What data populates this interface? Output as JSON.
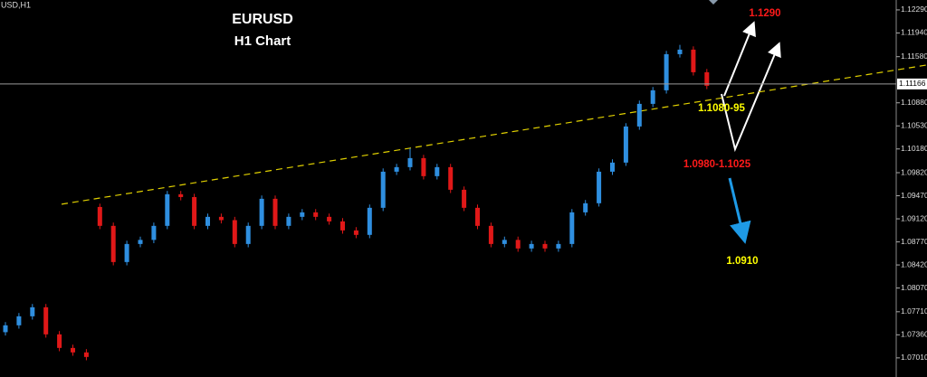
{
  "chart_data": {
    "type": "candlestick",
    "symbol_label": "USD,H1",
    "title": "EURUSD",
    "subtitle": "H1 Chart",
    "up_color": "#2f8fe0",
    "down_color": "#e01818",
    "open": [
      1.074,
      1.07504,
      1.07641,
      1.07778,
      1.07367,
      1.07161,
      1.07093,
      1.093,
      1.09013,
      1.08464,
      1.08738,
      1.088,
      1.09013,
      1.09493,
      1.0945,
      1.09013,
      1.0915,
      1.091,
      1.08738,
      1.09013,
      1.09424,
      1.09013,
      1.0915,
      1.09218,
      1.0915,
      1.09081,
      1.08944,
      1.08876,
      1.09287,
      1.09835,
      1.09904,
      1.10041,
      1.09767,
      1.09904,
      1.09561,
      1.09287,
      1.09013,
      1.08738,
      1.088,
      1.0867,
      1.08738,
      1.0867,
      1.08738,
      1.09218,
      1.09356,
      1.09835,
      1.09973,
      1.10521,
      1.10864,
      1.1107,
      1.11618,
      1.11687,
      1.11344
    ],
    "high": [
      1.07554,
      1.07691,
      1.07828,
      1.07828,
      1.07417,
      1.07211,
      1.07143,
      1.0935,
      1.09063,
      1.08788,
      1.0885,
      1.09063,
      1.09543,
      1.09543,
      1.095,
      1.092,
      1.092,
      1.0915,
      1.09063,
      1.09474,
      1.09474,
      1.092,
      1.09268,
      1.09268,
      1.092,
      1.09131,
      1.08994,
      1.09337,
      1.09885,
      1.09954,
      1.10191,
      1.10091,
      1.09954,
      1.09954,
      1.09611,
      1.09337,
      1.09063,
      1.0885,
      1.0885,
      1.08788,
      1.08788,
      1.08788,
      1.09268,
      1.09406,
      1.09885,
      1.10023,
      1.10571,
      1.10914,
      1.1112,
      1.11668,
      1.1176,
      1.11737,
      1.11394
    ],
    "low": [
      1.0735,
      1.07454,
      1.07591,
      1.07317,
      1.07111,
      1.07043,
      1.06974,
      1.08963,
      1.08414,
      1.08414,
      1.08688,
      1.0875,
      1.08963,
      1.094,
      1.08963,
      1.08963,
      1.0905,
      1.08688,
      1.08688,
      1.08963,
      1.08963,
      1.08963,
      1.091,
      1.091,
      1.09031,
      1.08894,
      1.08826,
      1.08826,
      1.09237,
      1.09785,
      1.09854,
      1.09717,
      1.09717,
      1.09511,
      1.09237,
      1.08963,
      1.08688,
      1.08688,
      1.0862,
      1.0862,
      1.0862,
      1.0862,
      1.08688,
      1.09168,
      1.09306,
      1.09785,
      1.09923,
      1.10471,
      1.10814,
      1.1102,
      1.11568,
      1.11294,
      1.11088
    ],
    "close": [
      1.07504,
      1.07641,
      1.07778,
      1.07367,
      1.07161,
      1.07093,
      1.07024,
      1.09013,
      1.08464,
      1.08738,
      1.088,
      1.09013,
      1.09493,
      1.0945,
      1.09013,
      1.0915,
      1.091,
      1.08738,
      1.09013,
      1.09424,
      1.09013,
      1.0915,
      1.09218,
      1.0915,
      1.09081,
      1.08944,
      1.08876,
      1.09287,
      1.09835,
      1.09904,
      1.10041,
      1.09767,
      1.09904,
      1.09561,
      1.09287,
      1.09013,
      1.08738,
      1.088,
      1.0867,
      1.08738,
      1.0867,
      1.08738,
      1.09218,
      1.09356,
      1.09835,
      1.09973,
      1.10521,
      1.10864,
      1.1107,
      1.11618,
      1.11687,
      1.11344,
      1.11138
    ],
    "ylim": [
      1.0672,
      1.1244
    ],
    "yticks": [
      {
        "value": 1.1229,
        "label": "1.12290"
      },
      {
        "value": 1.1194,
        "label": "1.11940"
      },
      {
        "value": 1.1158,
        "label": "1.11580"
      },
      {
        "value": 1.1088,
        "label": "1.10880"
      },
      {
        "value": 1.1053,
        "label": "1.10530"
      },
      {
        "value": 1.1018,
        "label": "1.10180"
      },
      {
        "value": 1.0982,
        "label": "1.09820"
      },
      {
        "value": 1.0947,
        "label": "1.09470"
      },
      {
        "value": 1.0912,
        "label": "1.09120"
      },
      {
        "value": 1.0877,
        "label": "1.08770"
      },
      {
        "value": 1.0842,
        "label": "1.08420"
      },
      {
        "value": 1.0807,
        "label": "1.08070"
      },
      {
        "value": 1.0771,
        "label": "1.07710"
      },
      {
        "value": 1.0736,
        "label": "1.07360"
      },
      {
        "value": 1.0701,
        "label": "1.07010"
      }
    ],
    "current_price": 1.11166,
    "trendline": {
      "start": 1.09342,
      "end": 1.11454,
      "color": "#e0d000"
    },
    "annotations": [
      {
        "text": "1.1290",
        "color": "#ff1a1a"
      },
      {
        "text": "1.1080-95",
        "color": "#ffff00"
      },
      {
        "text": "1.0980-1.1025",
        "color": "#ff1a1a"
      },
      {
        "text": "1.0910",
        "color": "#ffff00"
      }
    ]
  }
}
